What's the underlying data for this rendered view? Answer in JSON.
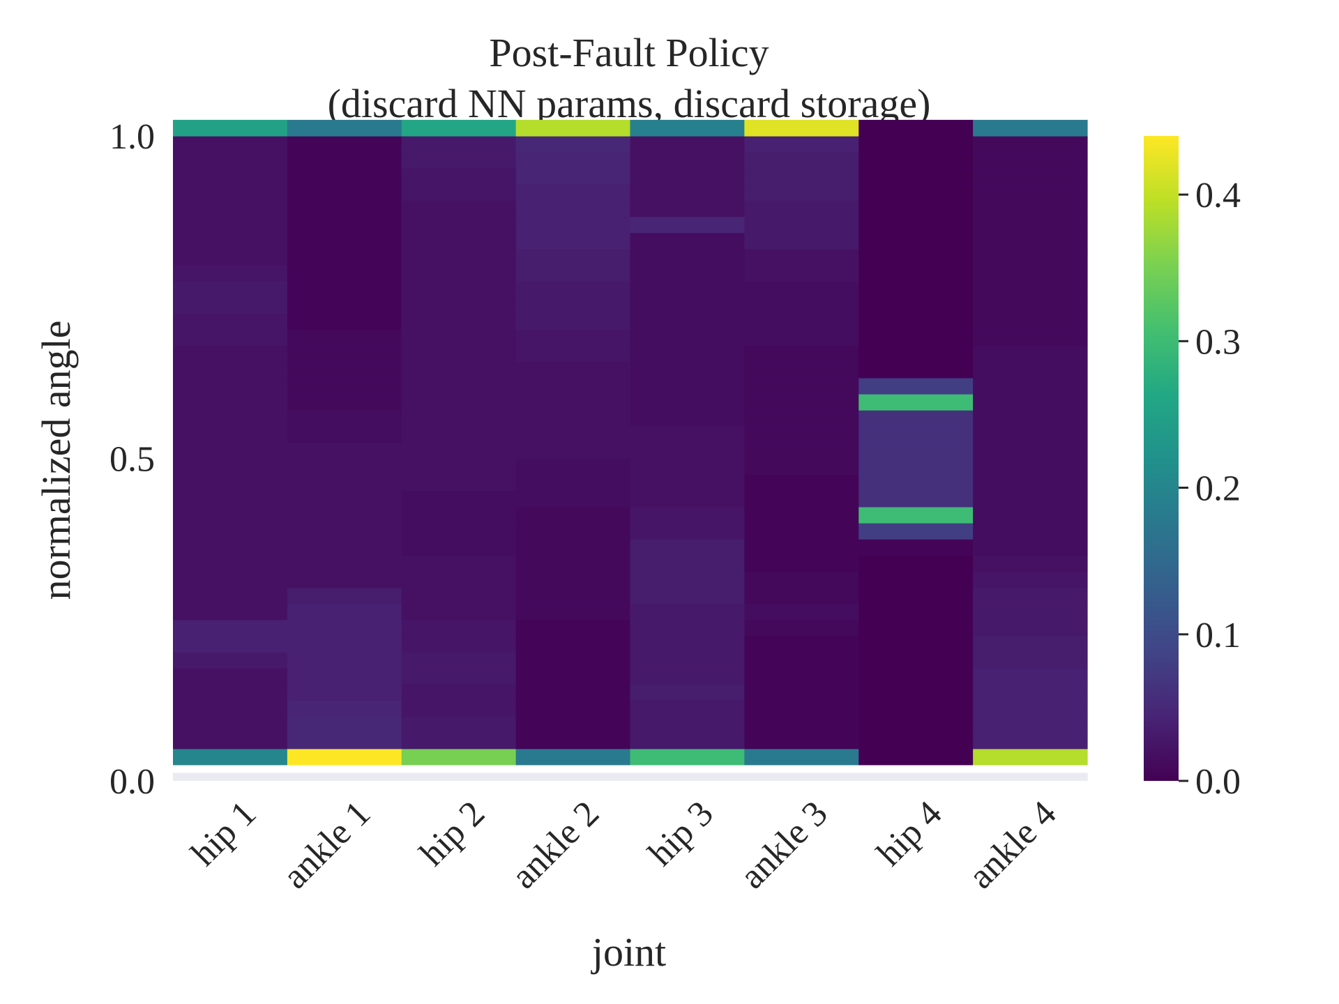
{
  "chart_data": {
    "type": "heatmap",
    "title": "Post-Fault Policy\n(discard NN params, discard storage)",
    "title_lines": [
      "Post-Fault Policy",
      "(discard NN params, discard storage)"
    ],
    "xlabel": "joint",
    "ylabel": "normalized angle",
    "x_categories": [
      "hip 1",
      "ankle 1",
      "hip 2",
      "ankle 2",
      "hip 3",
      "ankle 3",
      "hip 4",
      "ankle 4"
    ],
    "y_range": [
      0.0,
      1.0
    ],
    "y_ticks": [
      "0.0",
      "0.5",
      "1.0"
    ],
    "colormap": "viridis",
    "colorbar": {
      "range": [
        0.0,
        0.44
      ],
      "ticks": [
        0.0,
        0.1,
        0.2,
        0.3,
        0.4
      ],
      "tick_labels": [
        "0.0",
        "0.1",
        "0.2",
        "0.3",
        "0.4"
      ]
    },
    "grid": false,
    "y_bins": 41,
    "values_note": "values[j][k] = density for joint j at bin k, bin 0 at normalized angle 0.0, bin 40 at 1.0",
    "values": [
      [
        0.0,
        0.2,
        0.02,
        0.02,
        0.02,
        0.02,
        0.02,
        0.03,
        0.04,
        0.04,
        0.02,
        0.02,
        0.02,
        0.02,
        0.02,
        0.02,
        0.02,
        0.02,
        0.02,
        0.02,
        0.02,
        0.02,
        0.02,
        0.02,
        0.02,
        0.02,
        0.02,
        0.025,
        0.025,
        0.03,
        0.03,
        0.025,
        0.02,
        0.02,
        0.02,
        0.02,
        0.02,
        0.02,
        0.02,
        0.02,
        0.25
      ],
      [
        0.0,
        0.44,
        0.05,
        0.05,
        0.045,
        0.04,
        0.04,
        0.04,
        0.04,
        0.04,
        0.04,
        0.035,
        0.02,
        0.02,
        0.02,
        0.02,
        0.02,
        0.02,
        0.02,
        0.02,
        0.02,
        0.015,
        0.015,
        0.01,
        0.01,
        0.01,
        0.01,
        0.01,
        0.005,
        0.005,
        0.005,
        0.005,
        0.005,
        0.005,
        0.005,
        0.005,
        0.005,
        0.005,
        0.005,
        0.005,
        0.18
      ],
      [
        0.0,
        0.35,
        0.03,
        0.03,
        0.025,
        0.025,
        0.03,
        0.03,
        0.025,
        0.025,
        0.02,
        0.02,
        0.02,
        0.02,
        0.015,
        0.015,
        0.015,
        0.015,
        0.02,
        0.02,
        0.02,
        0.02,
        0.02,
        0.02,
        0.02,
        0.02,
        0.02,
        0.02,
        0.02,
        0.02,
        0.02,
        0.02,
        0.02,
        0.02,
        0.02,
        0.02,
        0.025,
        0.025,
        0.03,
        0.03,
        0.26
      ],
      [
        0.0,
        0.18,
        0.005,
        0.005,
        0.005,
        0.005,
        0.005,
        0.005,
        0.005,
        0.005,
        0.01,
        0.01,
        0.01,
        0.01,
        0.01,
        0.01,
        0.01,
        0.015,
        0.015,
        0.015,
        0.02,
        0.02,
        0.02,
        0.02,
        0.02,
        0.02,
        0.025,
        0.025,
        0.03,
        0.03,
        0.03,
        0.035,
        0.035,
        0.04,
        0.04,
        0.04,
        0.04,
        0.045,
        0.045,
        0.05,
        0.39
      ],
      [
        0.0,
        0.3,
        0.03,
        0.03,
        0.03,
        0.035,
        0.03,
        0.03,
        0.03,
        0.03,
        0.03,
        0.035,
        0.035,
        0.035,
        0.035,
        0.025,
        0.025,
        0.02,
        0.02,
        0.02,
        0.02,
        0.02,
        0.015,
        0.015,
        0.015,
        0.015,
        0.015,
        0.015,
        0.015,
        0.015,
        0.015,
        0.015,
        0.015,
        0.015,
        0.045,
        0.02,
        0.02,
        0.02,
        0.02,
        0.02,
        0.19
      ],
      [
        0.0,
        0.18,
        0.005,
        0.005,
        0.005,
        0.005,
        0.005,
        0.005,
        0.005,
        0.01,
        0.015,
        0.01,
        0.01,
        0.005,
        0.005,
        0.005,
        0.005,
        0.005,
        0.005,
        0.01,
        0.01,
        0.01,
        0.01,
        0.01,
        0.01,
        0.01,
        0.01,
        0.015,
        0.015,
        0.015,
        0.015,
        0.02,
        0.02,
        0.03,
        0.03,
        0.03,
        0.035,
        0.035,
        0.035,
        0.04,
        0.42
      ],
      [
        0.0,
        0.0,
        0.0,
        0.0,
        0.0,
        0.0,
        0.0,
        0.0,
        0.0,
        0.0,
        0.0,
        0.0,
        0.0,
        0.0,
        0.005,
        0.08,
        0.3,
        0.06,
        0.06,
        0.06,
        0.06,
        0.06,
        0.06,
        0.3,
        0.08,
        0.0,
        0.0,
        0.0,
        0.0,
        0.0,
        0.0,
        0.0,
        0.0,
        0.0,
        0.0,
        0.0,
        0.0,
        0.0,
        0.0,
        0.0,
        0.0
      ],
      [
        0.0,
        0.39,
        0.04,
        0.04,
        0.04,
        0.04,
        0.04,
        0.035,
        0.035,
        0.03,
        0.03,
        0.03,
        0.025,
        0.02,
        0.015,
        0.015,
        0.015,
        0.015,
        0.015,
        0.015,
        0.015,
        0.015,
        0.015,
        0.015,
        0.015,
        0.015,
        0.015,
        0.01,
        0.01,
        0.01,
        0.01,
        0.01,
        0.01,
        0.01,
        0.01,
        0.01,
        0.01,
        0.01,
        0.01,
        0.01,
        0.18
      ]
    ]
  }
}
